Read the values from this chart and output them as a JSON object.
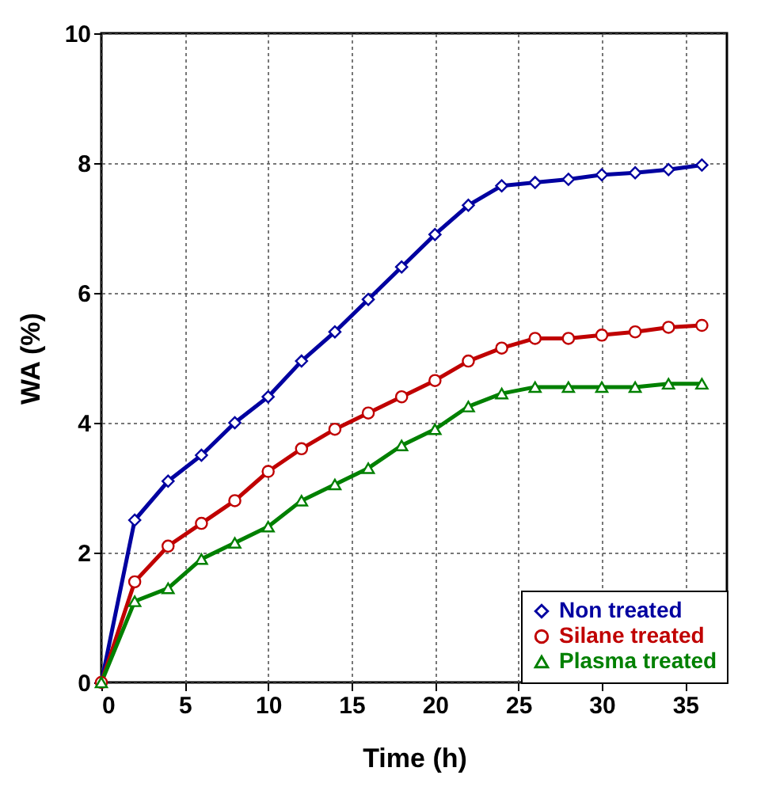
{
  "chart_data": {
    "type": "line",
    "xlabel": "Time (h)",
    "ylabel": "WA (%)",
    "x": [
      0,
      2,
      4,
      6,
      8,
      10,
      12,
      14,
      16,
      18,
      20,
      22,
      24,
      26,
      28,
      30,
      32,
      34,
      36
    ],
    "series": [
      {
        "name": "Non treated",
        "color": "#0000a0",
        "marker": "diamond",
        "values": [
          0,
          2.5,
          3.1,
          3.5,
          4.0,
          4.4,
          4.95,
          5.4,
          5.9,
          6.4,
          6.9,
          7.35,
          7.65,
          7.7,
          7.75,
          7.82,
          7.85,
          7.9,
          7.97
        ]
      },
      {
        "name": "Silane treated",
        "color": "#c00000",
        "marker": "circle",
        "values": [
          0,
          1.55,
          2.1,
          2.45,
          2.8,
          3.25,
          3.6,
          3.9,
          4.15,
          4.4,
          4.65,
          4.95,
          5.15,
          5.3,
          5.3,
          5.35,
          5.4,
          5.47,
          5.5
        ]
      },
      {
        "name": "Plasma treated",
        "color": "#008000",
        "marker": "triangle",
        "values": [
          0,
          1.25,
          1.45,
          1.9,
          2.15,
          2.4,
          2.8,
          3.05,
          3.3,
          3.65,
          3.9,
          4.25,
          4.45,
          4.55,
          4.55,
          4.55,
          4.55,
          4.6,
          4.6
        ]
      }
    ],
    "xlim": [
      0,
      37.5
    ],
    "xticks": [
      0,
      5,
      10,
      15,
      20,
      25,
      30,
      35
    ],
    "ylim": [
      0,
      10
    ],
    "yticks": [
      0,
      2,
      4,
      6,
      8,
      10
    ],
    "grid": true,
    "legend": "bottom right",
    "line_style": "solid"
  }
}
